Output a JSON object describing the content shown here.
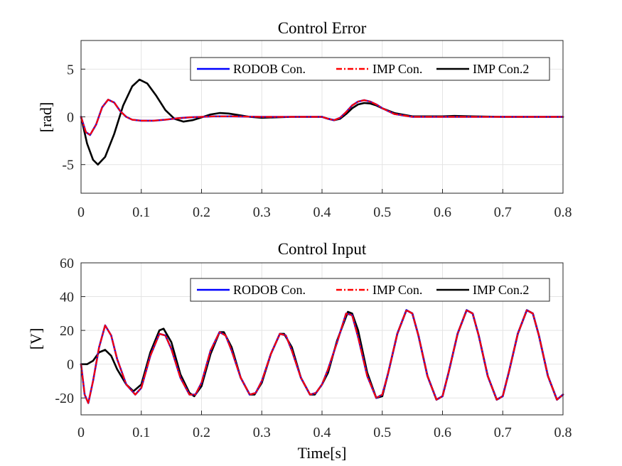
{
  "figure": {
    "xlabel": "Time[s]"
  },
  "legend": [
    {
      "name": "RODOB Con.",
      "color": "#0000ff",
      "dash": "solid"
    },
    {
      "name": "IMP Con.",
      "color": "#ff0000",
      "dash": "dashdot"
    },
    {
      "name": "IMP Con.2",
      "color": "#000000",
      "dash": "solid"
    }
  ],
  "chart_data": [
    {
      "type": "line",
      "title": "Control Error",
      "ylabel": "[rad]",
      "xlabel": "",
      "xlim": [
        0,
        0.8
      ],
      "ylim": [
        -8,
        8
      ],
      "xticks": [
        0,
        0.1,
        0.2,
        0.3,
        0.4,
        0.5,
        0.6,
        0.7,
        0.8
      ],
      "yticks": [
        -5,
        0,
        5
      ],
      "grid": true,
      "legend_position": "top-right",
      "series": [
        {
          "name": "RODOB Con.",
          "x": [
            0,
            0.008,
            0.015,
            0.025,
            0.035,
            0.045,
            0.055,
            0.065,
            0.075,
            0.085,
            0.1,
            0.12,
            0.14,
            0.16,
            0.18,
            0.2,
            0.22,
            0.25,
            0.3,
            0.35,
            0.4,
            0.41,
            0.42,
            0.43,
            0.44,
            0.45,
            0.46,
            0.47,
            0.48,
            0.49,
            0.5,
            0.52,
            0.55,
            0.6,
            0.65,
            0.7,
            0.75,
            0.8
          ],
          "y": [
            0,
            -1.6,
            -1.9,
            -0.8,
            1.0,
            1.8,
            1.5,
            0.6,
            0.0,
            -0.3,
            -0.4,
            -0.4,
            -0.3,
            -0.15,
            -0.05,
            0.0,
            0.05,
            0.05,
            0.0,
            0.0,
            0.0,
            -0.2,
            -0.35,
            -0.1,
            0.5,
            1.2,
            1.6,
            1.75,
            1.6,
            1.3,
            0.9,
            0.3,
            0.0,
            0.0,
            0.0,
            0.0,
            0.0,
            0.0
          ]
        },
        {
          "name": "IMP Con.",
          "x": [
            0,
            0.008,
            0.015,
            0.025,
            0.035,
            0.045,
            0.055,
            0.065,
            0.075,
            0.085,
            0.1,
            0.12,
            0.14,
            0.16,
            0.18,
            0.2,
            0.22,
            0.25,
            0.3,
            0.35,
            0.4,
            0.41,
            0.42,
            0.43,
            0.44,
            0.45,
            0.46,
            0.47,
            0.48,
            0.49,
            0.5,
            0.52,
            0.55,
            0.6,
            0.65,
            0.7,
            0.75,
            0.8
          ],
          "y": [
            0,
            -1.6,
            -1.9,
            -0.8,
            1.0,
            1.8,
            1.5,
            0.6,
            0.0,
            -0.3,
            -0.4,
            -0.4,
            -0.3,
            -0.15,
            -0.05,
            0.0,
            0.05,
            0.05,
            0.0,
            0.0,
            0.0,
            -0.2,
            -0.35,
            -0.1,
            0.5,
            1.2,
            1.6,
            1.75,
            1.6,
            1.3,
            0.9,
            0.3,
            0.0,
            0.0,
            0.0,
            0.0,
            0.0,
            0.0
          ]
        },
        {
          "name": "IMP Con.2",
          "x": [
            0,
            0.01,
            0.02,
            0.028,
            0.04,
            0.055,
            0.07,
            0.085,
            0.097,
            0.11,
            0.125,
            0.14,
            0.155,
            0.17,
            0.185,
            0.2,
            0.215,
            0.23,
            0.245,
            0.26,
            0.28,
            0.3,
            0.35,
            0.4,
            0.41,
            0.42,
            0.43,
            0.44,
            0.45,
            0.46,
            0.47,
            0.48,
            0.49,
            0.5,
            0.52,
            0.55,
            0.6,
            0.62,
            0.65,
            0.7,
            0.75,
            0.8
          ],
          "y": [
            0,
            -2.8,
            -4.5,
            -5.0,
            -4.2,
            -1.8,
            1.2,
            3.2,
            3.9,
            3.5,
            2.2,
            0.7,
            -0.2,
            -0.5,
            -0.35,
            -0.05,
            0.25,
            0.4,
            0.35,
            0.2,
            0.0,
            -0.1,
            0.0,
            0.0,
            -0.2,
            -0.35,
            -0.2,
            0.3,
            0.9,
            1.3,
            1.45,
            1.4,
            1.2,
            0.9,
            0.4,
            0.05,
            0.05,
            0.1,
            0.05,
            0.0,
            0.0,
            0.0
          ]
        }
      ]
    },
    {
      "type": "line",
      "title": "Control Input",
      "ylabel": "[V]",
      "xlabel": "Time[s]",
      "xlim": [
        0,
        0.8
      ],
      "ylim": [
        -30,
        60
      ],
      "xticks": [
        0,
        0.1,
        0.2,
        0.3,
        0.4,
        0.5,
        0.6,
        0.7,
        0.8
      ],
      "yticks": [
        -20,
        0,
        20,
        40,
        60
      ],
      "grid": true,
      "legend_position": "top-right",
      "series": [
        {
          "name": "RODOB Con.",
          "x": [
            0,
            0.006,
            0.012,
            0.02,
            0.03,
            0.04,
            0.05,
            0.06,
            0.075,
            0.09,
            0.1,
            0.115,
            0.13,
            0.14,
            0.15,
            0.165,
            0.18,
            0.19,
            0.2,
            0.215,
            0.23,
            0.24,
            0.25,
            0.265,
            0.28,
            0.29,
            0.3,
            0.315,
            0.33,
            0.34,
            0.35,
            0.365,
            0.38,
            0.39,
            0.4,
            0.41,
            0.425,
            0.44,
            0.45,
            0.46,
            0.475,
            0.49,
            0.5,
            0.51,
            0.525,
            0.54,
            0.55,
            0.56,
            0.575,
            0.59,
            0.6,
            0.61,
            0.625,
            0.64,
            0.65,
            0.66,
            0.675,
            0.69,
            0.7,
            0.71,
            0.725,
            0.74,
            0.75,
            0.76,
            0.775,
            0.79,
            0.8
          ],
          "y": [
            0,
            -18,
            -23,
            -10,
            10,
            23,
            17,
            3,
            -12,
            -18,
            -14,
            5,
            18,
            17,
            9,
            -8,
            -18,
            -18,
            -11,
            8,
            19,
            17,
            8,
            -8,
            -18,
            -17,
            -10,
            6,
            18,
            17,
            8,
            -8,
            -18,
            -17,
            -12,
            -3,
            13,
            30,
            29,
            16,
            -7,
            -20,
            -18,
            -5,
            18,
            32,
            30,
            17,
            -7,
            -21,
            -19,
            -5,
            18,
            32,
            30,
            17,
            -7,
            -21,
            -19,
            -5,
            18,
            32,
            30,
            17,
            -7,
            -21,
            -18
          ]
        },
        {
          "name": "IMP Con.",
          "x": [
            0,
            0.006,
            0.012,
            0.02,
            0.03,
            0.04,
            0.05,
            0.06,
            0.075,
            0.09,
            0.1,
            0.115,
            0.13,
            0.14,
            0.15,
            0.165,
            0.18,
            0.19,
            0.2,
            0.215,
            0.23,
            0.24,
            0.25,
            0.265,
            0.28,
            0.29,
            0.3,
            0.315,
            0.33,
            0.34,
            0.35,
            0.365,
            0.38,
            0.39,
            0.4,
            0.41,
            0.425,
            0.44,
            0.45,
            0.46,
            0.475,
            0.49,
            0.5,
            0.51,
            0.525,
            0.54,
            0.55,
            0.56,
            0.575,
            0.59,
            0.6,
            0.61,
            0.625,
            0.64,
            0.65,
            0.66,
            0.675,
            0.69,
            0.7,
            0.71,
            0.725,
            0.74,
            0.75,
            0.76,
            0.775,
            0.79,
            0.8
          ],
          "y": [
            0,
            -18,
            -23,
            -10,
            10,
            23,
            17,
            3,
            -12,
            -18,
            -14,
            5,
            18,
            17,
            9,
            -8,
            -18,
            -18,
            -11,
            8,
            19,
            17,
            8,
            -8,
            -18,
            -17,
            -10,
            6,
            18,
            17,
            8,
            -8,
            -18,
            -17,
            -12,
            -3,
            13,
            30,
            29,
            16,
            -7,
            -20,
            -18,
            -5,
            18,
            32,
            30,
            17,
            -7,
            -21,
            -19,
            -5,
            18,
            32,
            30,
            17,
            -7,
            -21,
            -19,
            -5,
            18,
            32,
            30,
            17,
            -7,
            -21,
            -18
          ]
        },
        {
          "name": "IMP Con.2",
          "x": [
            0,
            0.01,
            0.02,
            0.03,
            0.04,
            0.05,
            0.06,
            0.075,
            0.087,
            0.1,
            0.115,
            0.13,
            0.137,
            0.15,
            0.165,
            0.18,
            0.188,
            0.2,
            0.215,
            0.23,
            0.237,
            0.25,
            0.265,
            0.28,
            0.288,
            0.3,
            0.315,
            0.33,
            0.337,
            0.35,
            0.365,
            0.38,
            0.388,
            0.4,
            0.41,
            0.425,
            0.443,
            0.45,
            0.46,
            0.475,
            0.49,
            0.5,
            0.51,
            0.525,
            0.54,
            0.55,
            0.56,
            0.575,
            0.59,
            0.6,
            0.61,
            0.625,
            0.64,
            0.65,
            0.66,
            0.675,
            0.69,
            0.7,
            0.71,
            0.725,
            0.74,
            0.75,
            0.76,
            0.775,
            0.79,
            0.8
          ],
          "y": [
            0,
            0,
            2,
            7,
            8.5,
            5,
            -3,
            -12,
            -16,
            -12,
            7,
            20,
            21,
            13,
            -6,
            -17,
            -19,
            -13,
            6,
            19,
            19,
            10,
            -8,
            -18,
            -18,
            -11,
            6,
            18,
            18,
            10,
            -8,
            -18,
            -18,
            -12,
            -5,
            14,
            31,
            30,
            20,
            -5,
            -20,
            -19,
            -5,
            18,
            32,
            30,
            17,
            -7,
            -21,
            -19,
            -5,
            18,
            32,
            30,
            17,
            -7,
            -21,
            -19,
            -5,
            18,
            32,
            30,
            17,
            -7,
            -21,
            -18
          ]
        }
      ]
    }
  ]
}
